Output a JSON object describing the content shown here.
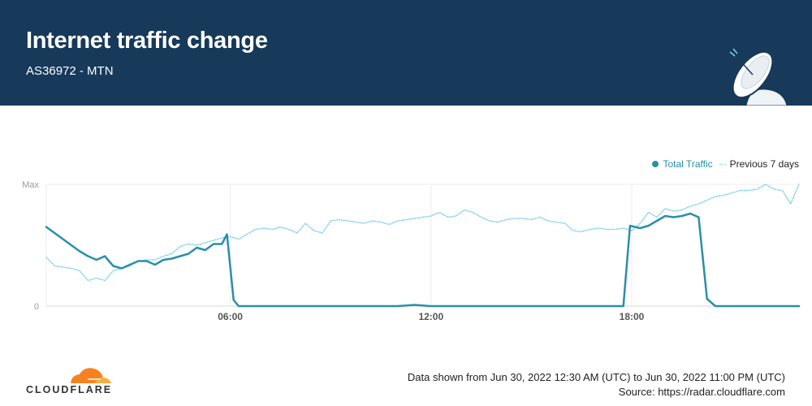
{
  "header": {
    "title": "Internet traffic change",
    "subtitle": "AS36972 - MTN"
  },
  "legend": {
    "total_label": "Total Traffic",
    "previous_label": "Previous 7 days"
  },
  "colors": {
    "header_bg": "#17395a",
    "total_traffic": "#2a8fa8",
    "previous_7_days": "#7fd1e8",
    "logo_orange": "#f6821f"
  },
  "icons": {
    "header_illustration": "satellite-dish-icon",
    "logo": "cloudflare-cloud-icon"
  },
  "footer": {
    "range_text": "Data shown from Jun 30, 2022 12:30 AM (UTC) to Jun 30, 2022 11:00 PM (UTC)",
    "source_text": "Source: https://radar.cloudflare.com",
    "logo_text": "CLOUDFLARE"
  },
  "chart_data": {
    "type": "line",
    "y_labels": {
      "max": "Max",
      "zero": "0"
    },
    "ylim": [
      0,
      100
    ],
    "xlim_hours": [
      0.5,
      23
    ],
    "x_ticks": [
      {
        "hour": 6,
        "label": "06:00"
      },
      {
        "hour": 12,
        "label": "12:00"
      },
      {
        "hour": 18,
        "label": "18:00"
      }
    ],
    "grid": true,
    "legend_position": "top-right",
    "series": [
      {
        "name": "Total Traffic",
        "style": "solid",
        "points": [
          [
            0.5,
            65
          ],
          [
            0.75,
            60
          ],
          [
            1.0,
            55
          ],
          [
            1.25,
            50
          ],
          [
            1.5,
            45
          ],
          [
            1.75,
            41
          ],
          [
            2.0,
            38
          ],
          [
            2.25,
            41
          ],
          [
            2.5,
            33
          ],
          [
            2.75,
            31
          ],
          [
            3.0,
            34
          ],
          [
            3.25,
            37
          ],
          [
            3.5,
            37
          ],
          [
            3.75,
            34
          ],
          [
            4.0,
            38
          ],
          [
            4.25,
            39
          ],
          [
            4.5,
            41
          ],
          [
            4.75,
            43
          ],
          [
            5.0,
            48
          ],
          [
            5.25,
            46
          ],
          [
            5.5,
            51
          ],
          [
            5.75,
            51
          ],
          [
            5.9,
            59
          ],
          [
            6.1,
            5
          ],
          [
            6.25,
            0
          ],
          [
            7,
            0
          ],
          [
            8,
            0
          ],
          [
            9,
            0
          ],
          [
            10,
            0
          ],
          [
            11,
            0
          ],
          [
            11.5,
            1
          ],
          [
            12,
            0
          ],
          [
            13,
            0
          ],
          [
            14,
            0
          ],
          [
            15,
            0
          ],
          [
            16,
            0
          ],
          [
            16.5,
            0
          ],
          [
            17,
            0
          ],
          [
            17.75,
            0
          ],
          [
            17.95,
            66
          ],
          [
            18.25,
            64
          ],
          [
            18.5,
            66
          ],
          [
            18.75,
            70
          ],
          [
            19.0,
            74
          ],
          [
            19.25,
            73
          ],
          [
            19.5,
            74
          ],
          [
            19.75,
            76
          ],
          [
            20.0,
            73
          ],
          [
            20.25,
            6
          ],
          [
            20.5,
            0
          ],
          [
            21,
            0
          ],
          [
            22,
            0
          ],
          [
            23,
            0
          ]
        ]
      },
      {
        "name": "Previous 7 days",
        "style": "dotted",
        "points": [
          [
            0.5,
            40
          ],
          [
            0.75,
            33
          ],
          [
            1.0,
            32
          ],
          [
            1.25,
            31
          ],
          [
            1.5,
            29
          ],
          [
            1.75,
            21
          ],
          [
            2.0,
            23
          ],
          [
            2.25,
            21
          ],
          [
            2.5,
            29
          ],
          [
            2.75,
            31
          ],
          [
            3.0,
            33
          ],
          [
            3.25,
            37
          ],
          [
            3.5,
            38
          ],
          [
            3.75,
            38
          ],
          [
            4.0,
            41
          ],
          [
            4.25,
            43
          ],
          [
            4.5,
            49
          ],
          [
            4.75,
            51
          ],
          [
            5.0,
            50
          ],
          [
            5.25,
            52
          ],
          [
            5.5,
            54
          ],
          [
            5.75,
            56
          ],
          [
            6.0,
            57
          ],
          [
            6.25,
            55
          ],
          [
            6.5,
            59
          ],
          [
            6.75,
            63
          ],
          [
            7.0,
            64
          ],
          [
            7.25,
            63
          ],
          [
            7.5,
            65
          ],
          [
            7.75,
            63
          ],
          [
            8.0,
            60
          ],
          [
            8.25,
            68
          ],
          [
            8.5,
            62
          ],
          [
            8.75,
            60
          ],
          [
            9.0,
            70
          ],
          [
            9.25,
            71
          ],
          [
            9.5,
            70
          ],
          [
            9.75,
            69
          ],
          [
            10.0,
            68
          ],
          [
            10.25,
            70
          ],
          [
            10.5,
            69
          ],
          [
            10.75,
            67
          ],
          [
            11.0,
            70
          ],
          [
            11.25,
            71
          ],
          [
            11.5,
            72
          ],
          [
            11.75,
            73
          ],
          [
            12.0,
            74
          ],
          [
            12.25,
            77
          ],
          [
            12.5,
            73
          ],
          [
            12.75,
            74
          ],
          [
            13.0,
            79
          ],
          [
            13.25,
            77
          ],
          [
            13.5,
            73
          ],
          [
            13.75,
            70
          ],
          [
            14.0,
            69
          ],
          [
            14.25,
            71
          ],
          [
            14.5,
            72
          ],
          [
            14.75,
            72
          ],
          [
            15.0,
            71
          ],
          [
            15.25,
            73
          ],
          [
            15.5,
            70
          ],
          [
            15.75,
            69
          ],
          [
            16.0,
            68
          ],
          [
            16.25,
            62
          ],
          [
            16.5,
            61
          ],
          [
            16.75,
            63
          ],
          [
            17.0,
            64
          ],
          [
            17.25,
            63
          ],
          [
            17.5,
            63
          ],
          [
            17.75,
            64
          ],
          [
            18.0,
            62
          ],
          [
            18.25,
            68
          ],
          [
            18.5,
            77
          ],
          [
            18.75,
            73
          ],
          [
            19.0,
            80
          ],
          [
            19.25,
            78
          ],
          [
            19.5,
            79
          ],
          [
            19.75,
            82
          ],
          [
            20.0,
            84
          ],
          [
            20.25,
            87
          ],
          [
            20.5,
            90
          ],
          [
            20.75,
            91
          ],
          [
            21.0,
            93
          ],
          [
            21.25,
            95
          ],
          [
            21.5,
            95
          ],
          [
            21.75,
            96
          ],
          [
            22.0,
            100
          ],
          [
            22.25,
            96
          ],
          [
            22.5,
            95
          ],
          [
            22.75,
            84
          ],
          [
            23.0,
            100
          ]
        ]
      }
    ]
  }
}
